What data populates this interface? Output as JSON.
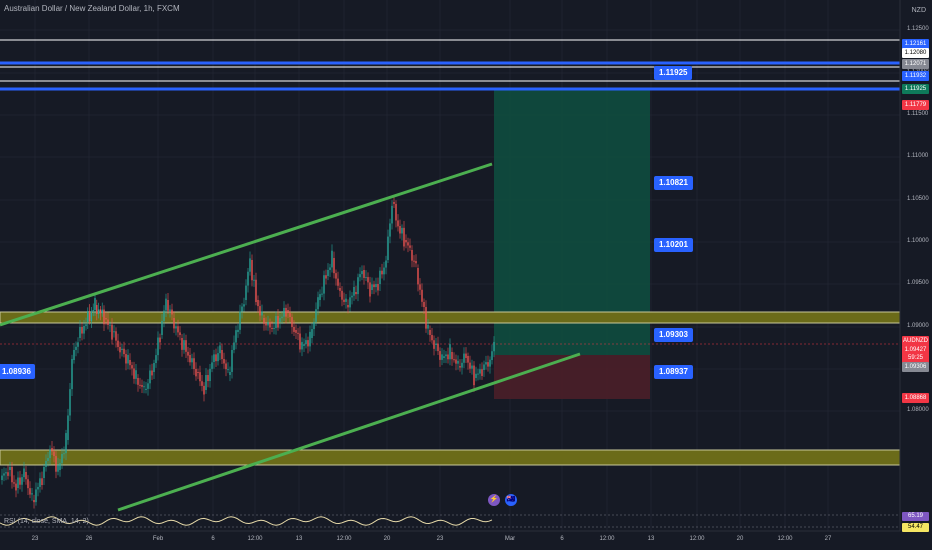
{
  "header": {
    "title": "Australian Dollar / New Zealand Dollar, 1h, FXCM",
    "currency": "NZD"
  },
  "colors": {
    "background": "#161a25",
    "channel_line": "#4caf50",
    "zone": "#6b6b19",
    "zone_border": "#c8c89a",
    "blue_level": "#2962ff",
    "target_fill": "#0e4d3f",
    "stop_fill": "#4a1f29",
    "candle_up": "#26a69a",
    "candle_down": "#ef5350",
    "rsi_line": "#e6d9a8"
  },
  "price_axis": {
    "ticks": [
      "1.12500",
      "1.12000",
      "1.11500",
      "1.11000",
      "1.10500",
      "1.10000",
      "1.09500",
      "1.09000",
      "1.08500",
      "1.08000"
    ]
  },
  "price_tags": [
    {
      "text": "1.12161",
      "color": "#2962ff"
    },
    {
      "text": "1.12080",
      "color": "#ffffff"
    },
    {
      "text": "1.12071",
      "color": "#868993"
    },
    {
      "text": "1.11932",
      "color": "#2962ff"
    },
    {
      "text": "1.11925",
      "color": "#0e7a5a"
    },
    {
      "text": "1.11779",
      "color": "#f23645"
    },
    {
      "text": "AUDNZD",
      "color": "#f23645"
    },
    {
      "text": "1.09427",
      "color": "#f23645"
    },
    {
      "text": "59:25",
      "color": "#f23645"
    },
    {
      "text": "1.09306",
      "color": "#868993"
    },
    {
      "text": "1.08868",
      "color": "#f23645"
    }
  ],
  "time_axis": {
    "ticks": [
      "23",
      "26",
      "Feb",
      "6",
      "12:00",
      "13",
      "12:00",
      "20",
      "23",
      "Mar",
      "6",
      "12:00",
      "13",
      "12:00",
      "20",
      "12:00",
      "27"
    ]
  },
  "callouts": [
    "1.11925",
    "1.10821",
    "1.10201",
    "1.09303",
    "1.08937"
  ],
  "left_tag": "1.08936",
  "rsi": {
    "label": "RSI (14, close, SMA, 14, 2)",
    "values": [
      "65.19",
      "54.47"
    ]
  },
  "events": {
    "lightning": "⚡",
    "flag": "🇦🇺"
  }
}
